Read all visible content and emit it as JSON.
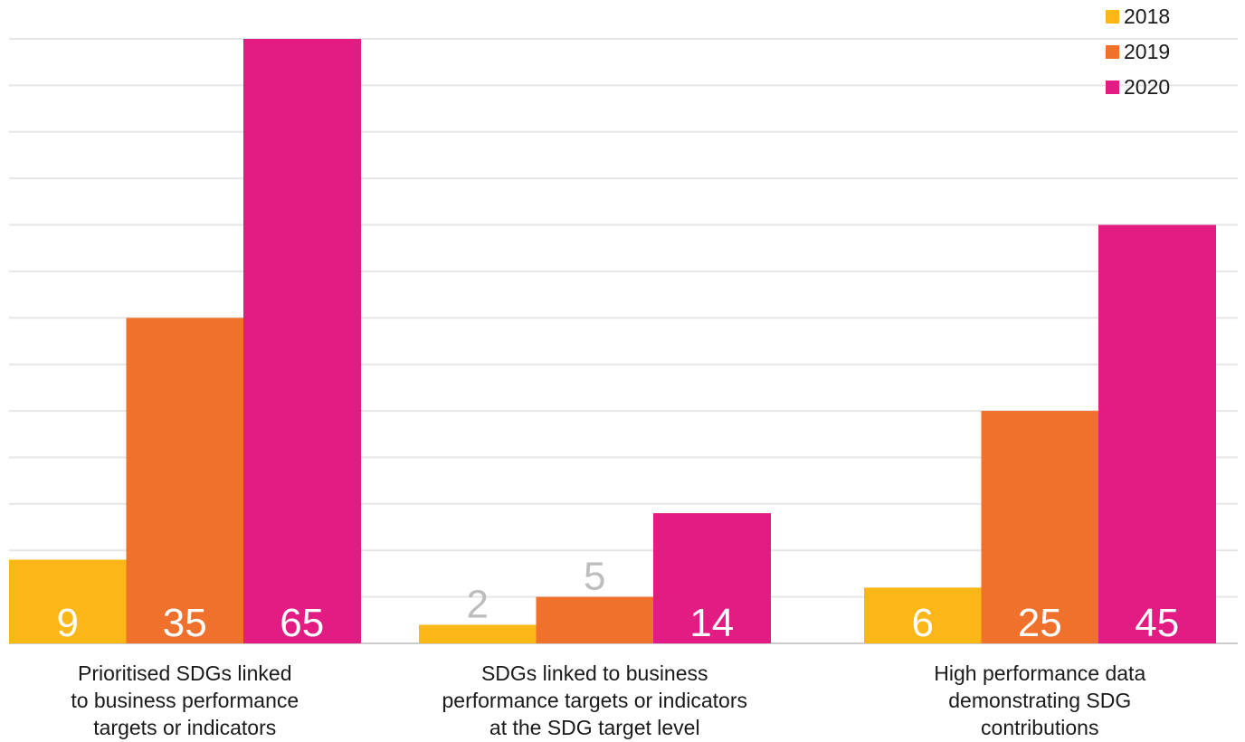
{
  "chart_data": {
    "type": "bar",
    "categories": [
      [
        "Prioritised SDGs linked",
        "to business performance",
        "targets or indicators"
      ],
      [
        "SDGs linked to business",
        "performance targets or indicators",
        "at the SDG target level"
      ],
      [
        "High performance data",
        "demonstrating SDG",
        "contributions"
      ]
    ],
    "series": [
      {
        "name": "2018",
        "color": "#FBB718",
        "values": [
          9,
          2,
          6
        ]
      },
      {
        "name": "2019",
        "color": "#F0712B",
        "values": [
          35,
          5,
          25
        ]
      },
      {
        "name": "2020",
        "color": "#E21C82",
        "values": [
          65,
          14,
          45
        ]
      }
    ],
    "ylim": [
      0,
      65
    ],
    "grid": true,
    "legend": "top-right",
    "label_color_inside": "#ffffff",
    "label_color_outside": "#bdbdbd",
    "gridline_color": "#e6e6e6",
    "axis_color": "#cccccc"
  }
}
